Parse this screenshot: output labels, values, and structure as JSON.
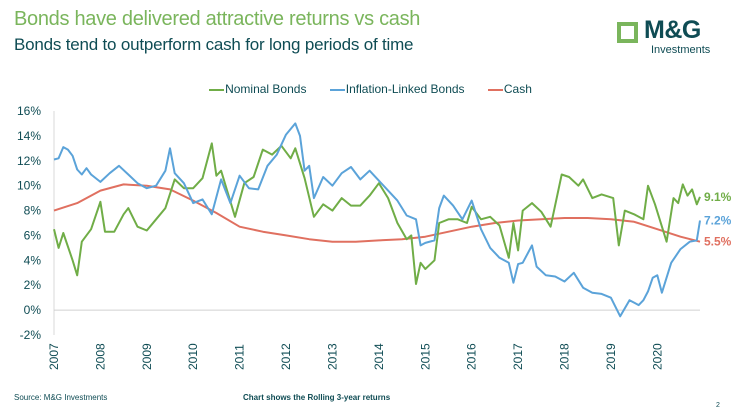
{
  "header": {
    "title": "Bonds have delivered attractive returns vs cash",
    "subtitle": "Bonds tend to outperform cash for long periods of time",
    "logo_text": "M&G",
    "logo_sub": "Investments"
  },
  "footer": {
    "source": "Source: M&G Investments",
    "note": "Chart shows the Rolling 3-year returns",
    "page": "2"
  },
  "chart_data": {
    "type": "line",
    "title": "",
    "xlabel": "",
    "ylabel": "",
    "xlim": [
      2007,
      2020.92
    ],
    "ylim": [
      -2,
      16
    ],
    "yticks": [
      "-2%",
      "0%",
      "2%",
      "4%",
      "6%",
      "8%",
      "10%",
      "12%",
      "14%",
      "16%"
    ],
    "ytick_values": [
      -2,
      0,
      2,
      4,
      6,
      8,
      10,
      12,
      14,
      16
    ],
    "xticks": [
      "2007",
      "2008",
      "2009",
      "2010",
      "2011",
      "2012",
      "2013",
      "2014",
      "2015",
      "2016",
      "2017",
      "2018",
      "2019",
      "2020"
    ],
    "grid": false,
    "legend_position": "top",
    "series": [
      {
        "name": "Nominal Bonds",
        "color": "#70ad47",
        "end_label": "9.1%",
        "points": [
          [
            2007.0,
            6.5
          ],
          [
            2007.1,
            5.0
          ],
          [
            2007.2,
            6.2
          ],
          [
            2007.4,
            4.0
          ],
          [
            2007.5,
            2.8
          ],
          [
            2007.6,
            5.5
          ],
          [
            2007.8,
            6.5
          ],
          [
            2008.0,
            8.7
          ],
          [
            2008.1,
            6.3
          ],
          [
            2008.3,
            6.3
          ],
          [
            2008.5,
            7.7
          ],
          [
            2008.6,
            8.2
          ],
          [
            2008.8,
            6.7
          ],
          [
            2009.0,
            6.4
          ],
          [
            2009.2,
            7.3
          ],
          [
            2009.4,
            8.2
          ],
          [
            2009.6,
            10.5
          ],
          [
            2009.8,
            9.8
          ],
          [
            2010.0,
            9.8
          ],
          [
            2010.2,
            10.6
          ],
          [
            2010.4,
            13.4
          ],
          [
            2010.5,
            10.8
          ],
          [
            2010.6,
            11.2
          ],
          [
            2010.9,
            7.5
          ],
          [
            2011.1,
            10.2
          ],
          [
            2011.3,
            10.7
          ],
          [
            2011.5,
            12.9
          ],
          [
            2011.7,
            12.5
          ],
          [
            2011.9,
            13.2
          ],
          [
            2012.1,
            12.2
          ],
          [
            2012.2,
            13.0
          ],
          [
            2012.4,
            10.6
          ],
          [
            2012.6,
            7.5
          ],
          [
            2012.8,
            8.5
          ],
          [
            2013.0,
            8.0
          ],
          [
            2013.2,
            9.0
          ],
          [
            2013.4,
            8.4
          ],
          [
            2013.6,
            8.4
          ],
          [
            2013.8,
            9.2
          ],
          [
            2014.0,
            10.2
          ],
          [
            2014.2,
            9.0
          ],
          [
            2014.4,
            7.0
          ],
          [
            2014.6,
            5.7
          ],
          [
            2014.7,
            6.0
          ],
          [
            2014.8,
            2.1
          ],
          [
            2014.9,
            3.8
          ],
          [
            2015.0,
            3.3
          ],
          [
            2015.2,
            4.0
          ],
          [
            2015.3,
            7.0
          ],
          [
            2015.5,
            7.3
          ],
          [
            2015.7,
            7.3
          ],
          [
            2015.9,
            7.0
          ],
          [
            2016.0,
            8.3
          ],
          [
            2016.2,
            7.3
          ],
          [
            2016.4,
            7.5
          ],
          [
            2016.6,
            6.8
          ],
          [
            2016.8,
            4.2
          ],
          [
            2016.9,
            7.0
          ],
          [
            2017.0,
            4.8
          ],
          [
            2017.1,
            8.0
          ],
          [
            2017.3,
            8.6
          ],
          [
            2017.5,
            7.9
          ],
          [
            2017.7,
            6.7
          ],
          [
            2017.94,
            10.9
          ],
          [
            2018.1,
            10.7
          ],
          [
            2018.3,
            10.0
          ],
          [
            2018.4,
            10.5
          ],
          [
            2018.6,
            9.0
          ],
          [
            2018.8,
            9.3
          ],
          [
            2019.05,
            9.0
          ],
          [
            2019.17,
            5.2
          ],
          [
            2019.3,
            8.0
          ],
          [
            2019.5,
            7.7
          ],
          [
            2019.7,
            7.3
          ],
          [
            2019.8,
            10.0
          ],
          [
            2019.95,
            8.5
          ],
          [
            2020.2,
            5.5
          ],
          [
            2020.35,
            9.0
          ],
          [
            2020.45,
            8.6
          ],
          [
            2020.55,
            10.1
          ],
          [
            2020.65,
            9.2
          ],
          [
            2020.75,
            9.7
          ],
          [
            2020.85,
            8.5
          ],
          [
            2020.92,
            9.1
          ]
        ]
      },
      {
        "name": "Inflation-Linked Bonds",
        "color": "#5ba3d9",
        "end_label": "7.2%",
        "points": [
          [
            2007.0,
            12.1
          ],
          [
            2007.1,
            12.2
          ],
          [
            2007.2,
            13.1
          ],
          [
            2007.3,
            12.9
          ],
          [
            2007.4,
            12.4
          ],
          [
            2007.5,
            11.3
          ],
          [
            2007.6,
            10.9
          ],
          [
            2007.7,
            11.4
          ],
          [
            2007.8,
            10.9
          ],
          [
            2008.0,
            10.3
          ],
          [
            2008.2,
            11.0
          ],
          [
            2008.4,
            11.6
          ],
          [
            2008.6,
            10.9
          ],
          [
            2008.8,
            10.2
          ],
          [
            2009.0,
            9.8
          ],
          [
            2009.2,
            10.0
          ],
          [
            2009.4,
            11.2
          ],
          [
            2009.5,
            13.0
          ],
          [
            2009.6,
            11.0
          ],
          [
            2009.8,
            10.2
          ],
          [
            2010.0,
            8.6
          ],
          [
            2010.2,
            8.9
          ],
          [
            2010.4,
            7.7
          ],
          [
            2010.6,
            10.5
          ],
          [
            2010.8,
            8.6
          ],
          [
            2011.0,
            10.8
          ],
          [
            2011.2,
            9.8
          ],
          [
            2011.4,
            9.7
          ],
          [
            2011.6,
            11.6
          ],
          [
            2011.8,
            12.5
          ],
          [
            2012.0,
            14.1
          ],
          [
            2012.2,
            15.0
          ],
          [
            2012.3,
            14.0
          ],
          [
            2012.4,
            11.2
          ],
          [
            2012.5,
            11.6
          ],
          [
            2012.6,
            9.0
          ],
          [
            2012.8,
            10.7
          ],
          [
            2013.0,
            10.0
          ],
          [
            2013.2,
            11.0
          ],
          [
            2013.4,
            11.5
          ],
          [
            2013.6,
            10.5
          ],
          [
            2013.8,
            11.2
          ],
          [
            2014.0,
            10.4
          ],
          [
            2014.2,
            9.6
          ],
          [
            2014.4,
            8.8
          ],
          [
            2014.6,
            7.6
          ],
          [
            2014.8,
            7.3
          ],
          [
            2014.9,
            5.2
          ],
          [
            2015.0,
            5.4
          ],
          [
            2015.2,
            5.6
          ],
          [
            2015.3,
            8.2
          ],
          [
            2015.4,
            9.2
          ],
          [
            2015.6,
            8.4
          ],
          [
            2015.8,
            7.3
          ],
          [
            2016.0,
            8.8
          ],
          [
            2016.2,
            6.5
          ],
          [
            2016.4,
            5.0
          ],
          [
            2016.6,
            4.2
          ],
          [
            2016.8,
            3.8
          ],
          [
            2016.9,
            2.2
          ],
          [
            2017.0,
            3.7
          ],
          [
            2017.1,
            3.8
          ],
          [
            2017.3,
            5.2
          ],
          [
            2017.4,
            3.5
          ],
          [
            2017.6,
            2.8
          ],
          [
            2017.8,
            2.7
          ],
          [
            2018.0,
            2.3
          ],
          [
            2018.2,
            3.0
          ],
          [
            2018.4,
            1.8
          ],
          [
            2018.6,
            1.4
          ],
          [
            2018.8,
            1.3
          ],
          [
            2019.0,
            1.0
          ],
          [
            2019.2,
            -0.5
          ],
          [
            2019.4,
            0.8
          ],
          [
            2019.6,
            0.4
          ],
          [
            2019.7,
            0.8
          ],
          [
            2019.8,
            1.5
          ],
          [
            2019.9,
            2.6
          ],
          [
            2020.0,
            2.8
          ],
          [
            2020.1,
            1.4
          ],
          [
            2020.3,
            3.8
          ],
          [
            2020.5,
            4.9
          ],
          [
            2020.7,
            5.5
          ],
          [
            2020.85,
            5.6
          ],
          [
            2020.92,
            7.2
          ]
        ]
      },
      {
        "name": "Cash",
        "color": "#e07060",
        "end_label": "5.5%",
        "points": [
          [
            2007.0,
            8.0
          ],
          [
            2007.5,
            8.6
          ],
          [
            2008.0,
            9.6
          ],
          [
            2008.5,
            10.1
          ],
          [
            2009.0,
            10.0
          ],
          [
            2009.5,
            9.7
          ],
          [
            2010.0,
            8.8
          ],
          [
            2010.5,
            7.8
          ],
          [
            2011.0,
            6.7
          ],
          [
            2011.5,
            6.3
          ],
          [
            2012.0,
            6.0
          ],
          [
            2012.5,
            5.7
          ],
          [
            2013.0,
            5.5
          ],
          [
            2013.5,
            5.5
          ],
          [
            2014.0,
            5.6
          ],
          [
            2014.5,
            5.7
          ],
          [
            2015.0,
            5.9
          ],
          [
            2015.5,
            6.3
          ],
          [
            2016.0,
            6.7
          ],
          [
            2016.5,
            7.0
          ],
          [
            2017.0,
            7.2
          ],
          [
            2017.5,
            7.3
          ],
          [
            2018.0,
            7.4
          ],
          [
            2018.5,
            7.4
          ],
          [
            2019.0,
            7.3
          ],
          [
            2019.5,
            7.1
          ],
          [
            2020.0,
            6.5
          ],
          [
            2020.5,
            5.9
          ],
          [
            2020.92,
            5.5
          ]
        ]
      }
    ]
  }
}
